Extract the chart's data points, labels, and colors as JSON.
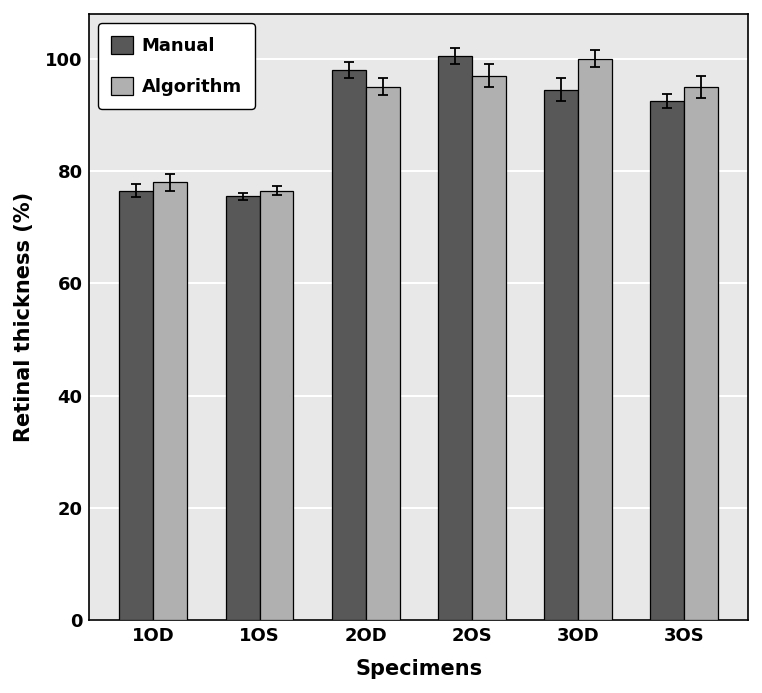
{
  "categories": [
    "1OD",
    "1OS",
    "2OD",
    "2OS",
    "3OD",
    "3OS"
  ],
  "manual_values": [
    76.5,
    75.5,
    98.0,
    100.5,
    94.5,
    92.5
  ],
  "algorithm_values": [
    78.0,
    76.5,
    95.0,
    97.0,
    100.0,
    95.0
  ],
  "manual_errors": [
    1.2,
    0.6,
    1.5,
    1.5,
    2.0,
    1.2
  ],
  "algorithm_errors": [
    1.5,
    0.8,
    1.5,
    2.0,
    1.5,
    2.0
  ],
  "manual_color": "#585858",
  "algorithm_color": "#b0b0b0",
  "ylabel": "Retinal thickness (%)",
  "xlabel": "Specimens",
  "ylim": [
    0,
    108
  ],
  "yticks": [
    0,
    20,
    40,
    60,
    80,
    100
  ],
  "bar_width": 0.32,
  "legend_labels": [
    "Manual",
    "Algorithm"
  ],
  "figure_bg_color": "#ffffff",
  "plot_bg_color": "#e8e8e8",
  "grid_color": "#ffffff",
  "edge_color": "#000000",
  "title_fontsize": 14,
  "tick_fontsize": 13,
  "label_fontsize": 15,
  "legend_fontsize": 13
}
